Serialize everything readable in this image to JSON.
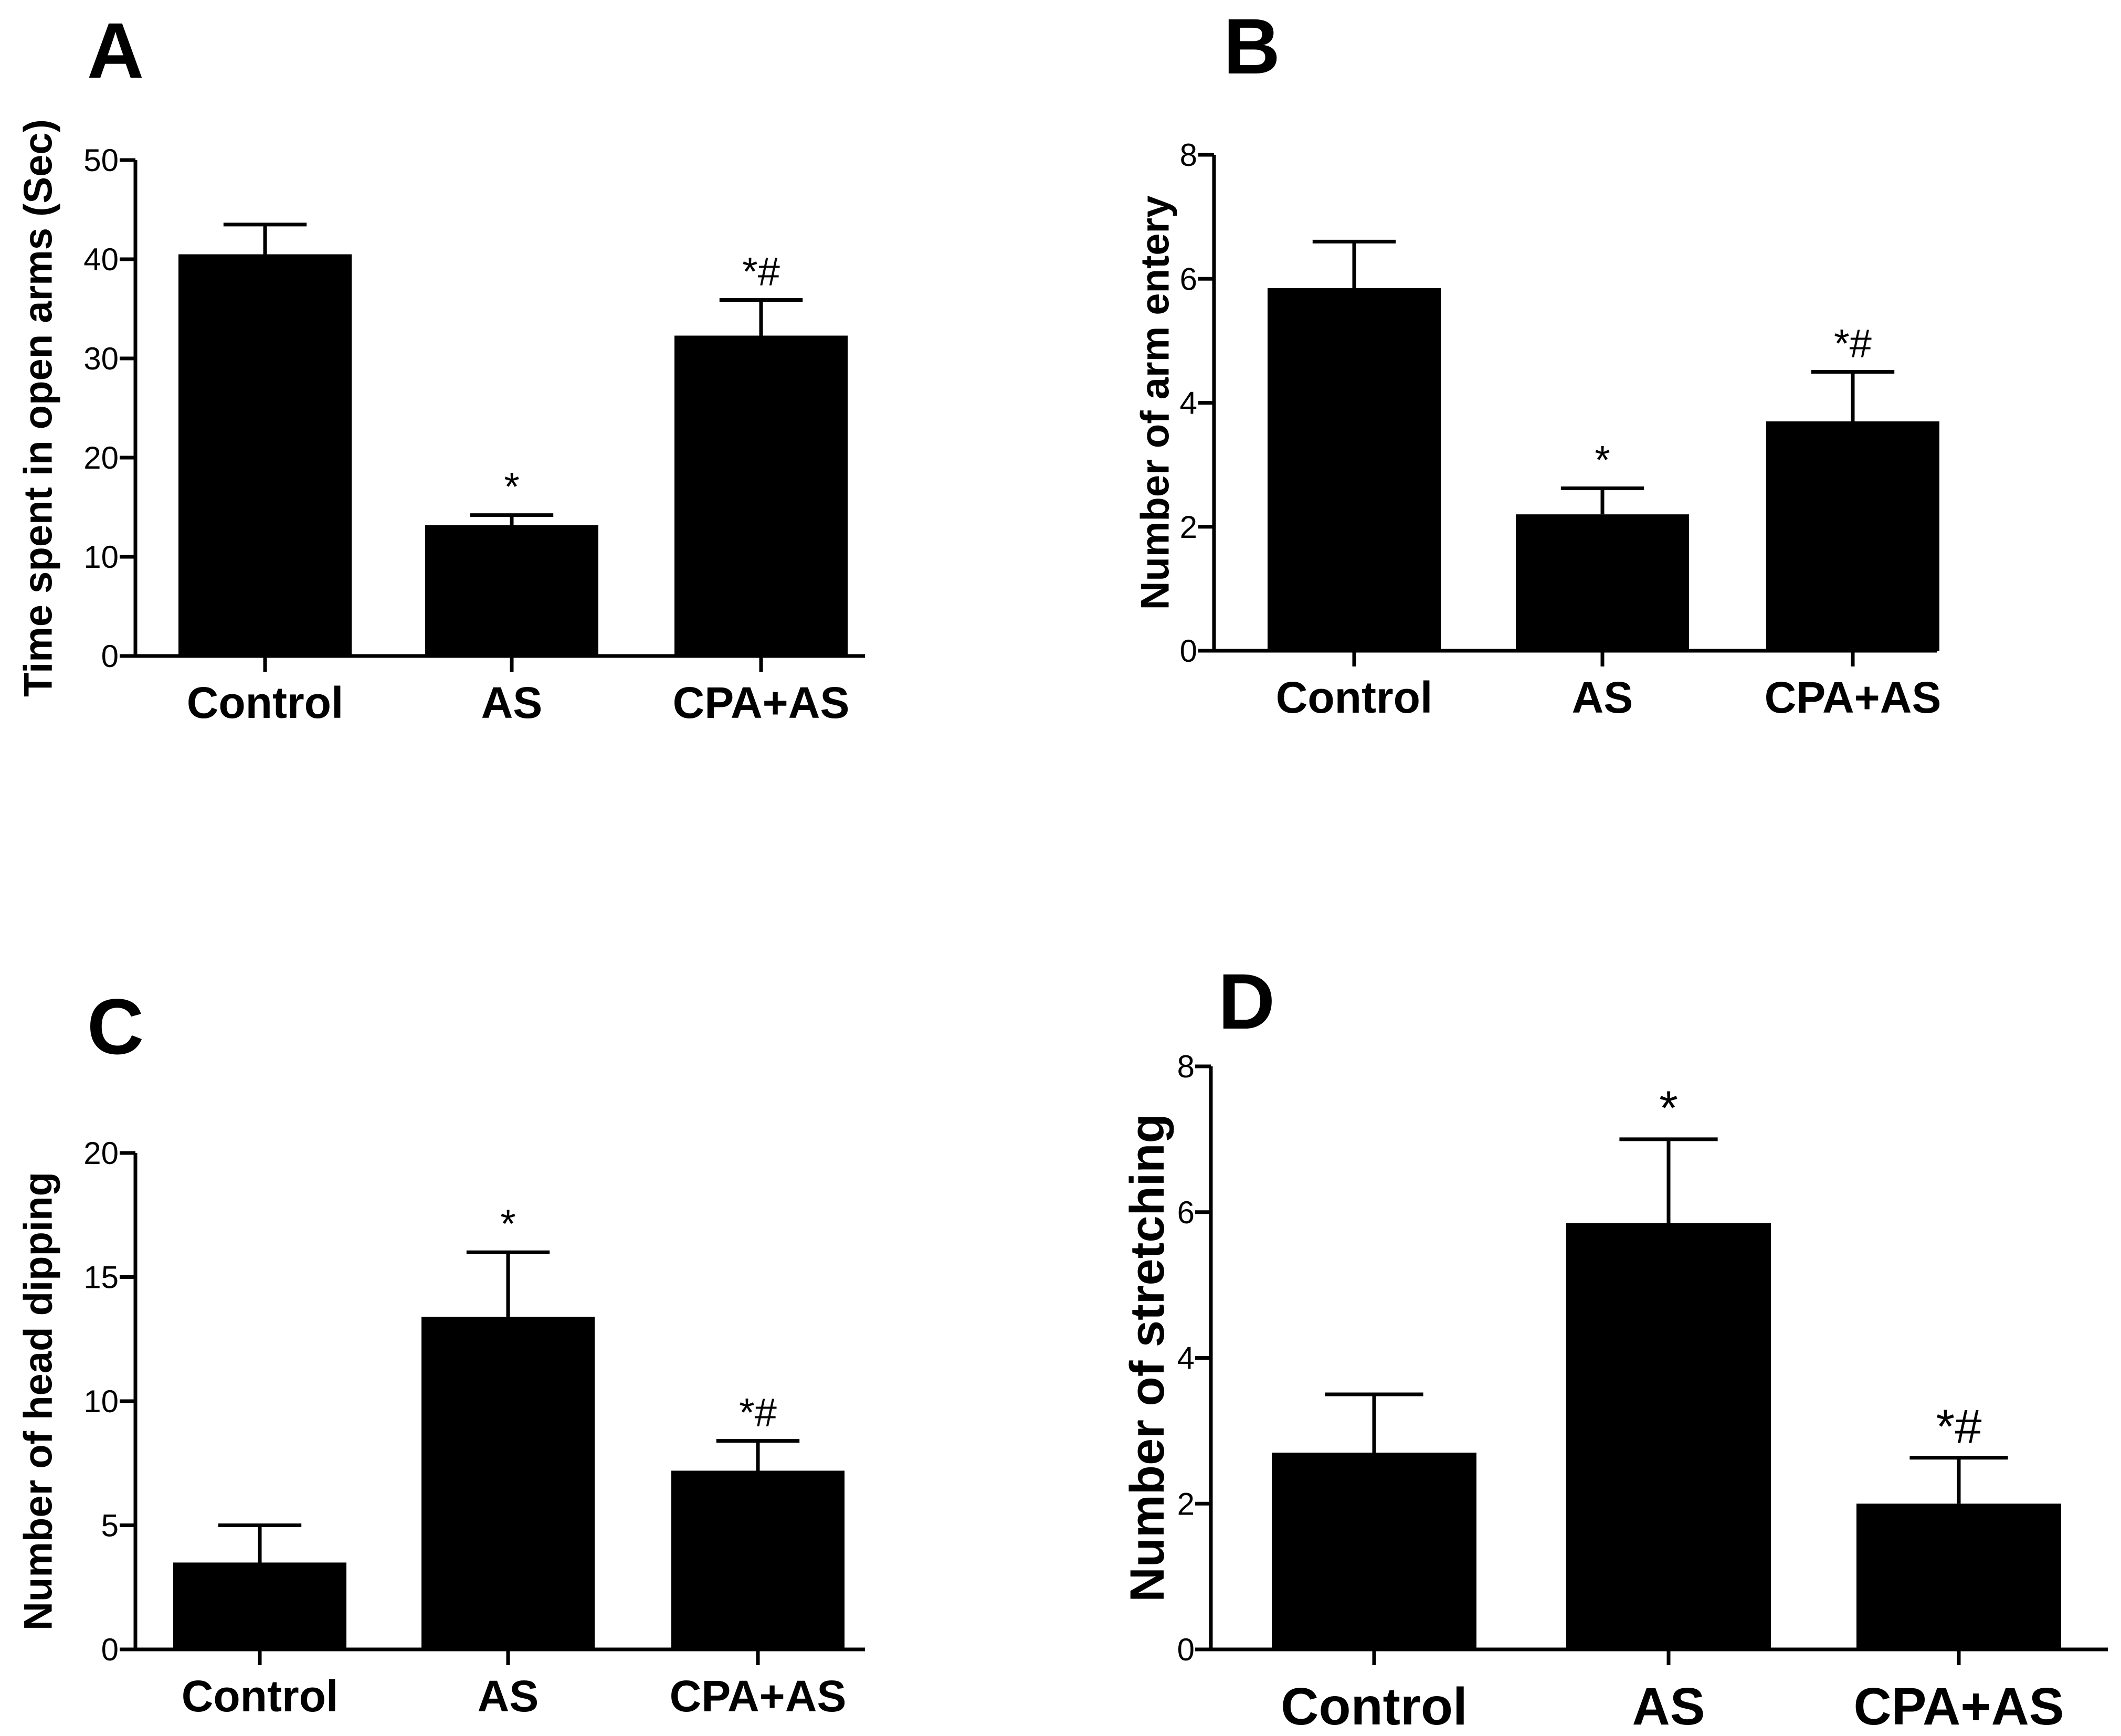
{
  "chart_data": [
    {
      "type": "bar",
      "panel": "A",
      "title": "",
      "xlabel": "",
      "ylabel": "Time spent in open arms (Sec)",
      "categories": [
        "Control",
        "AS",
        "CPA+AS"
      ],
      "values": [
        40.5,
        13.2,
        32.3
      ],
      "errors": [
        3.0,
        1.0,
        3.6
      ],
      "annotations": [
        "",
        "*",
        "*#"
      ],
      "ylim": [
        0,
        50
      ],
      "yticks": [
        0,
        10,
        20,
        30,
        40,
        50
      ],
      "color": "#000000"
    },
    {
      "type": "bar",
      "panel": "B",
      "title": "",
      "xlabel": "",
      "ylabel": "Number of arm entery",
      "categories": [
        "Control",
        "AS",
        "CPA+AS"
      ],
      "values": [
        5.85,
        2.2,
        3.7
      ],
      "errors": [
        0.75,
        0.42,
        0.8
      ],
      "annotations": [
        "",
        "*",
        "*#"
      ],
      "ylim": [
        0,
        8
      ],
      "yticks": [
        0,
        2,
        4,
        6,
        8
      ],
      "color": "#000000"
    },
    {
      "type": "bar",
      "panel": "C",
      "title": "",
      "xlabel": "",
      "ylabel": "Number of head dipping",
      "categories": [
        "Control",
        "AS",
        "CPA+AS"
      ],
      "values": [
        3.5,
        13.4,
        7.2
      ],
      "errors": [
        1.5,
        2.6,
        1.2
      ],
      "annotations": [
        "",
        "*",
        "*#"
      ],
      "ylim": [
        0,
        20
      ],
      "yticks": [
        0,
        5,
        10,
        15,
        20
      ],
      "color": "#000000"
    },
    {
      "type": "bar",
      "panel": "D",
      "title": "",
      "xlabel": "",
      "ylabel": "Number of stretching",
      "categories": [
        "Control",
        "AS",
        "CPA+AS"
      ],
      "values": [
        2.7,
        5.85,
        2.0
      ],
      "errors": [
        0.8,
        1.15,
        0.63
      ],
      "annotations": [
        "",
        "*",
        "*#"
      ],
      "ylim": [
        0,
        8
      ],
      "yticks": [
        0,
        2,
        4,
        6,
        8
      ],
      "color": "#000000"
    }
  ]
}
